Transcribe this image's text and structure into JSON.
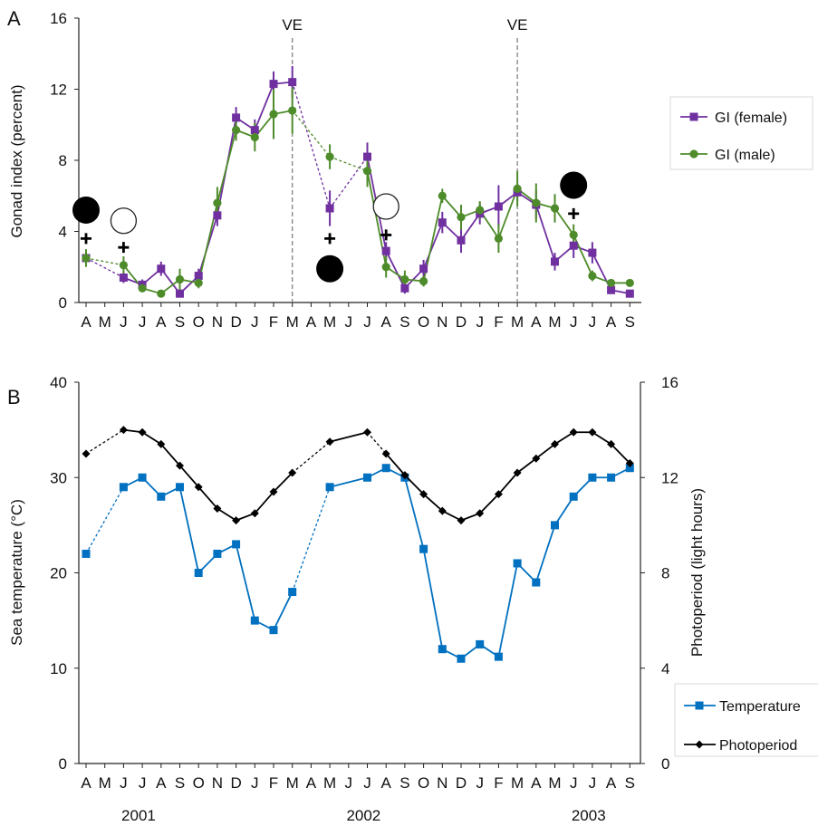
{
  "chart_data": [
    {
      "panel_label": "A",
      "type": "line",
      "ylabel": "Gonad index (percent)",
      "ylim": [
        0,
        16
      ],
      "yticks": [
        "0",
        "4",
        "8",
        "12",
        "16"
      ],
      "x_labels": [
        "A",
        "M",
        "J",
        "J",
        "A",
        "S",
        "O",
        "N",
        "D",
        "J",
        "F",
        "M",
        "A",
        "M",
        "J",
        "J",
        "A",
        "S",
        "O",
        "N",
        "D",
        "J",
        "F",
        "M",
        "A",
        "M",
        "J",
        "J",
        "A",
        "S"
      ],
      "ve_label": "VE",
      "ve_lines_at_index": [
        11,
        23
      ],
      "grid": false,
      "legend_position": "right",
      "series": [
        {
          "name": "GI (female)",
          "color": "#7030A0",
          "marker": "square",
          "x_index": [
            0,
            2,
            3,
            4,
            5,
            6,
            7,
            8,
            9,
            10,
            11,
            13,
            15,
            16,
            17,
            18,
            19,
            20,
            21,
            22,
            23,
            24,
            25,
            26,
            27,
            28,
            29
          ],
          "values": [
            2.5,
            1.4,
            1.0,
            1.9,
            0.5,
            1.5,
            4.9,
            10.4,
            9.7,
            12.3,
            12.4,
            5.3,
            8.2,
            2.9,
            0.8,
            1.9,
            4.5,
            3.5,
            5.0,
            5.4,
            6.2,
            5.5,
            2.3,
            3.2,
            2.8,
            0.7,
            0.5
          ],
          "error": [
            0.4,
            0.3,
            0.3,
            0.4,
            0.2,
            0.4,
            0.6,
            0.6,
            0.6,
            0.7,
            0.9,
            1.0,
            0.8,
            0.5,
            0.3,
            0.5,
            0.6,
            0.7,
            0.6,
            1.2,
            0.5,
            0.8,
            0.5,
            0.7,
            0.6,
            0.2,
            0.1
          ]
        },
        {
          "name": "GI (male)",
          "color": "#4E8B2A",
          "marker": "circle",
          "x_index": [
            0,
            2,
            3,
            4,
            5,
            6,
            7,
            8,
            9,
            10,
            11,
            13,
            15,
            16,
            17,
            18,
            19,
            20,
            21,
            22,
            23,
            24,
            25,
            26,
            27,
            28,
            29
          ],
          "values": [
            2.5,
            2.1,
            0.8,
            0.5,
            1.3,
            1.1,
            5.6,
            9.7,
            9.3,
            10.6,
            10.8,
            8.2,
            7.4,
            2.0,
            1.3,
            1.2,
            6.0,
            4.8,
            5.2,
            3.6,
            6.4,
            5.6,
            5.3,
            3.8,
            1.5,
            1.1,
            1.1
          ],
          "error": [
            0.5,
            0.5,
            0.2,
            0.2,
            0.6,
            0.3,
            0.9,
            0.6,
            0.8,
            1.4,
            1.3,
            0.7,
            0.9,
            0.6,
            0.5,
            0.3,
            0.4,
            0.7,
            0.5,
            0.8,
            1.0,
            1.1,
            0.8,
            0.6,
            0.3,
            0.2,
            0.1
          ]
        }
      ],
      "dashed_segments_x_index": [
        [
          0,
          2
        ],
        [
          11,
          13
        ],
        [
          13,
          15
        ]
      ],
      "symbols": [
        {
          "kind": "filled-circle",
          "x_index": 0,
          "y": 5.2
        },
        {
          "kind": "plus",
          "x_index": 0,
          "y": 3.6
        },
        {
          "kind": "open-circle",
          "x_index": 2,
          "y": 4.6
        },
        {
          "kind": "plus",
          "x_index": 2,
          "y": 3.1
        },
        {
          "kind": "plus",
          "x_index": 13,
          "y": 3.6
        },
        {
          "kind": "filled-circle",
          "x_index": 13,
          "y": 1.9
        },
        {
          "kind": "open-circle",
          "x_index": 16,
          "y": 5.4
        },
        {
          "kind": "plus",
          "x_index": 16,
          "y": 3.8
        },
        {
          "kind": "filled-circle",
          "x_index": 26,
          "y": 6.6
        },
        {
          "kind": "plus",
          "x_index": 26,
          "y": 5.0
        }
      ]
    },
    {
      "panel_label": "B",
      "type": "line",
      "ylabel": "Sea temperature (°C)",
      "ylim": [
        0,
        40
      ],
      "yticks": [
        "0",
        "10",
        "20",
        "30",
        "40"
      ],
      "y2label": "Photoperiod (light hours)",
      "y2lim": [
        0,
        16
      ],
      "y2ticks": [
        "0",
        "4",
        "8",
        "12",
        "16"
      ],
      "x_labels": [
        "A",
        "M",
        "J",
        "J",
        "A",
        "S",
        "O",
        "N",
        "D",
        "J",
        "F",
        "M",
        "A",
        "M",
        "J",
        "J",
        "A",
        "S",
        "O",
        "N",
        "D",
        "J",
        "F",
        "M",
        "A",
        "M",
        "J",
        "J",
        "A",
        "S"
      ],
      "year_labels": [
        "2001",
        "2002",
        "2003"
      ],
      "grid": false,
      "legend_position": "right",
      "series": [
        {
          "name": "Temperature",
          "color": "#0070C0",
          "marker": "square",
          "axis": "left",
          "x_index": [
            0,
            2,
            3,
            4,
            5,
            6,
            7,
            8,
            9,
            10,
            11,
            13,
            15,
            16,
            17,
            18,
            19,
            20,
            21,
            22,
            23,
            24,
            25,
            26,
            27,
            28,
            29
          ],
          "values": [
            22,
            29,
            30,
            28,
            29,
            20,
            22,
            23,
            15,
            14,
            18,
            29,
            30,
            31,
            30,
            22.5,
            12,
            11,
            12.5,
            11.2,
            21,
            19,
            25,
            28,
            30,
            30,
            31
          ]
        },
        {
          "name": "Photoperiod",
          "color": "#000000",
          "marker": "diamond",
          "axis": "right",
          "x_index": [
            0,
            2,
            3,
            4,
            5,
            6,
            7,
            8,
            9,
            10,
            11,
            13,
            15,
            16,
            17,
            18,
            19,
            20,
            21,
            22,
            23,
            24,
            25,
            26,
            27,
            28,
            29
          ],
          "values": [
            13.0,
            14.0,
            13.9,
            13.4,
            12.5,
            11.6,
            10.7,
            10.2,
            10.5,
            11.4,
            12.2,
            13.5,
            13.9,
            13.0,
            12.1,
            11.3,
            10.6,
            10.2,
            10.5,
            11.3,
            12.2,
            12.8,
            13.4,
            13.9,
            13.9,
            13.4,
            12.6
          ]
        }
      ],
      "temperature_dashed_x_index": [
        [
          0,
          2
        ],
        [
          11,
          13
        ]
      ],
      "photoperiod_dashed_x_index": [
        [
          0,
          2
        ],
        [
          5,
          7
        ],
        [
          11,
          13
        ],
        [
          15,
          16
        ]
      ]
    }
  ]
}
